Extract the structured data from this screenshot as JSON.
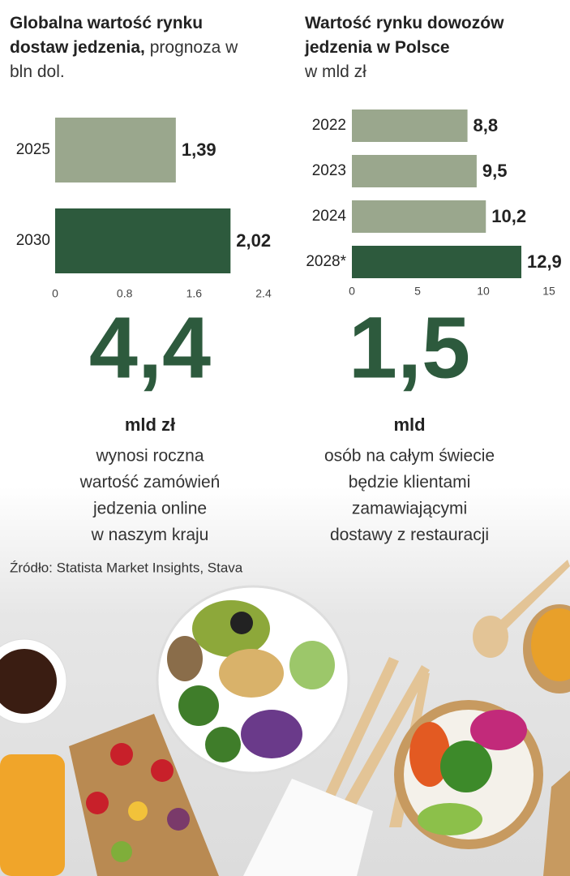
{
  "chart_data": [
    {
      "type": "barh",
      "title": "Globalna wartość rynku dostaw jedzenia,",
      "subtitle": "prognoza w bln dol.",
      "categories": [
        "2025",
        "2030"
      ],
      "values": [
        1.39,
        2.02
      ],
      "value_labels": [
        "1,39",
        "2,02"
      ],
      "colors": [
        "#9aa78d",
        "#2d5a3d"
      ],
      "xlim": [
        0,
        2.4
      ],
      "xticks": [
        0,
        0.8,
        1.6,
        2.4
      ]
    },
    {
      "type": "barh",
      "title": "Wartość rynku dowozów jedzenia w Polsce",
      "subtitle": "w mld zł",
      "categories": [
        "2022",
        "2023",
        "2024",
        "2028*"
      ],
      "values": [
        8.8,
        9.5,
        10.2,
        12.9
      ],
      "value_labels": [
        "8,8",
        "9,5",
        "10,2",
        "12,9"
      ],
      "colors": [
        "#9aa78d",
        "#9aa78d",
        "#9aa78d",
        "#2d5a3d"
      ],
      "xlim": [
        0,
        15
      ],
      "xticks": [
        0,
        5,
        10,
        15
      ]
    }
  ],
  "stats": [
    {
      "number": "4,4",
      "unit": "mld zł",
      "description": [
        "wynosi roczna",
        "wartość zamówień",
        "jedzenia online",
        "w naszym kraju"
      ]
    },
    {
      "number": "1,5",
      "unit": "mld",
      "description": [
        "osób na całym świecie",
        "będzie klientami",
        "zamawiającymi",
        "dostawy z restauracji"
      ]
    }
  ],
  "source": "Źródło: Statista Market Insights, Stava"
}
